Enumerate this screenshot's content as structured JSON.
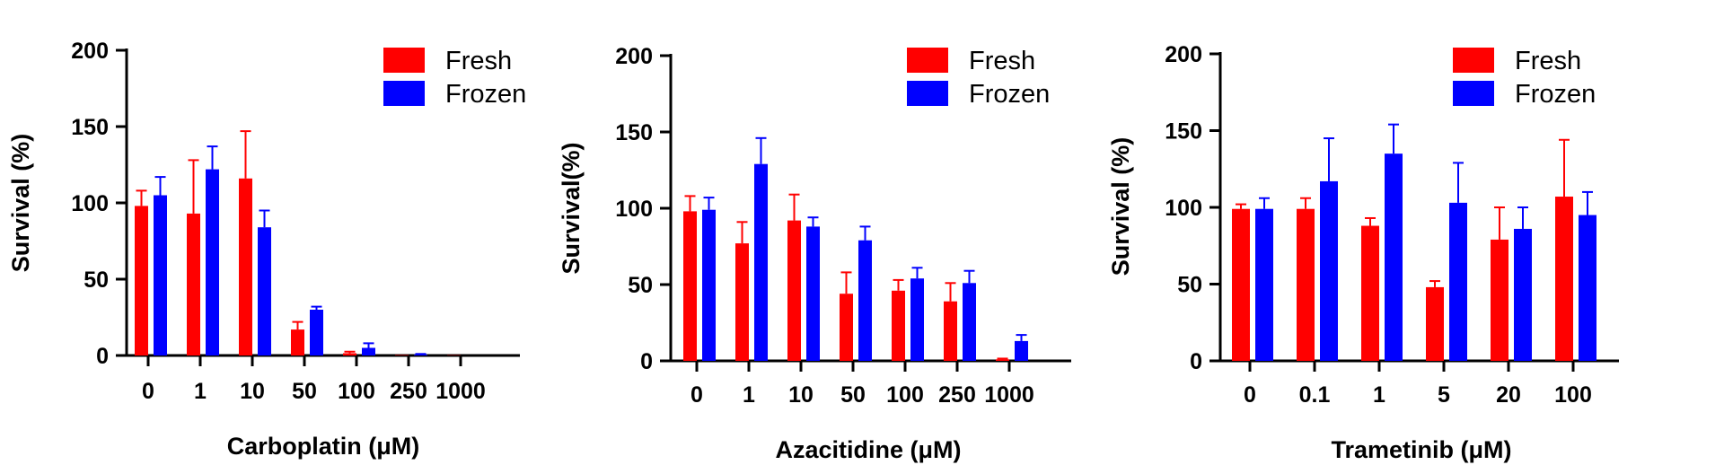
{
  "chart_data": [
    {
      "type": "bar",
      "xlabel": "Carboplatin (μM)",
      "ylabel": "Survival  (%)",
      "ylim": [
        0,
        200
      ],
      "yticks": [
        "0",
        "50",
        "100",
        "150",
        "200"
      ],
      "categories": [
        "0",
        "1",
        "10",
        "50",
        "100",
        "250",
        "1000"
      ],
      "legend": "top-right",
      "series": [
        {
          "name": "Fresh",
          "color": "#ff0000",
          "values": [
            98,
            93,
            116,
            17,
            1.5,
            0.3,
            0.2
          ],
          "errors": [
            10,
            35,
            31,
            5,
            1,
            0,
            0
          ]
        },
        {
          "name": "Frozen",
          "color": "#0000ff",
          "values": [
            105,
            122,
            84,
            30,
            5,
            0.5,
            0
          ],
          "errors": [
            12,
            15,
            11,
            2,
            3,
            0.5,
            0
          ]
        }
      ]
    },
    {
      "type": "bar",
      "xlabel": "Azacitidine (μM)",
      "ylabel": "Survival(%)",
      "ylim": [
        0,
        200
      ],
      "yticks": [
        "0",
        "50",
        "100",
        "150",
        "200"
      ],
      "categories": [
        "0",
        "1",
        "10",
        "50",
        "100",
        "250",
        "1000"
      ],
      "legend": "top-right",
      "series": [
        {
          "name": "Fresh",
          "color": "#ff0000",
          "values": [
            98,
            77,
            92,
            44,
            46,
            39,
            1
          ],
          "errors": [
            10,
            14,
            17,
            14,
            7,
            12,
            0.5
          ]
        },
        {
          "name": "Frozen",
          "color": "#0000ff",
          "values": [
            99,
            129,
            88,
            79,
            54,
            51,
            13
          ],
          "errors": [
            8,
            17,
            6,
            9,
            7,
            8,
            4
          ]
        }
      ]
    },
    {
      "type": "bar",
      "xlabel": "Trametinib (μM)",
      "ylabel": "Survival  (%)",
      "ylim": [
        0,
        200
      ],
      "yticks": [
        "0",
        "50",
        "100",
        "150",
        "200"
      ],
      "categories": [
        "0",
        "0.1",
        "1",
        "5",
        "20",
        "100"
      ],
      "legend": "top-right",
      "series": [
        {
          "name": "Fresh",
          "color": "#ff0000",
          "values": [
            99,
            99,
            88,
            48,
            79,
            107
          ],
          "errors": [
            3,
            7,
            5,
            4,
            21,
            37
          ]
        },
        {
          "name": "Frozen",
          "color": "#0000ff",
          "values": [
            99,
            117,
            135,
            103,
            86,
            95
          ],
          "errors": [
            7,
            28,
            19,
            26,
            14,
            15
          ]
        }
      ]
    }
  ]
}
